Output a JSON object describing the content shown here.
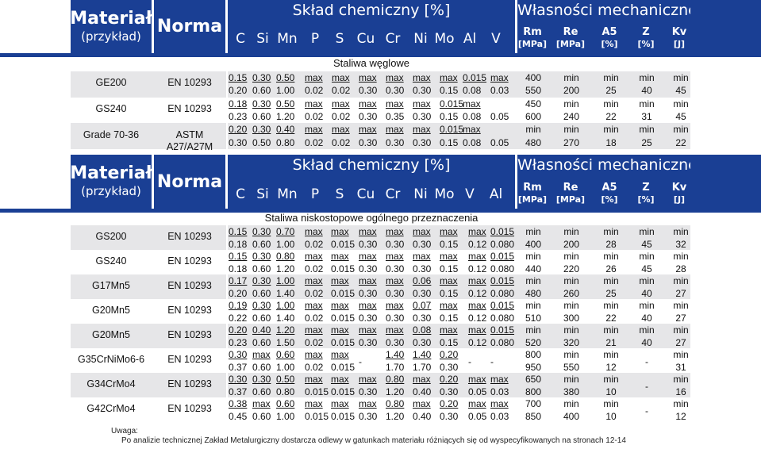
{
  "colors": {
    "header_bg": "#1a3f94",
    "row_bg": "#e6e6e8",
    "text": "#111111"
  },
  "header": {
    "material_title": "Materiał",
    "material_sub": "(przykład)",
    "norma": "Norma",
    "chem_title": "Skład chemiczny [%]",
    "mech_title": "Własności mechaniczne",
    "elements_top": [
      "C",
      "Si",
      "Mn",
      "P",
      "S",
      "Cu",
      "Cr",
      "Ni",
      "Mo",
      "Al",
      "V"
    ],
    "elements_bottom": [
      "C",
      "Si",
      "Mn",
      "P",
      "S",
      "Cu",
      "Cr",
      "Ni",
      "Mo",
      "V",
      "Al"
    ],
    "mech_cols": [
      {
        "sym": "Rm",
        "unit": "[MPa]"
      },
      {
        "sym": "Re",
        "unit": "[MPa]"
      },
      {
        "sym": "A5",
        "unit": "[%]"
      },
      {
        "sym": "Z",
        "unit": "[%]"
      },
      {
        "sym": "Kv",
        "unit": "[J]"
      }
    ]
  },
  "table1": {
    "section": "Staliwa węglowe",
    "materials": [
      {
        "name": "GE200",
        "norm": "EN 10293"
      },
      {
        "name": "GS240",
        "norm": "EN 10293"
      },
      {
        "name": "Grade 70-36",
        "norm": "ASTM A27/A27M"
      }
    ],
    "chem_rows": [
      [
        "0.15",
        "0.30",
        "0.50",
        "max",
        "max",
        "max",
        "max",
        "max",
        "max",
        "0.015",
        "max"
      ],
      [
        "0.20",
        "0.60",
        "1.00",
        "0.02",
        "0.02",
        "0.30",
        "0.30",
        "0.30",
        "0.15",
        "0.08",
        "0.03"
      ],
      [
        "0.18",
        "0.30",
        "0.50",
        "max",
        "max",
        "max",
        "max",
        "max",
        "0.015",
        "max",
        ""
      ],
      [
        "0.23",
        "0.60",
        "1.20",
        "0.02",
        "0.02",
        "0.30",
        "0.35",
        "0.30",
        "0.15",
        "0.08",
        "0.05"
      ],
      [
        "0.20",
        "0.30",
        "0.40",
        "max",
        "max",
        "max",
        "max",
        "max",
        "0.015",
        "max",
        ""
      ],
      [
        "0.30",
        "0.50",
        "0.80",
        "0.02",
        "0.02",
        "0.30",
        "0.30",
        "0.30",
        "0.15",
        "0.08",
        "0.05"
      ]
    ],
    "mech_rows": [
      [
        "400",
        "min",
        "min",
        "min",
        "min"
      ],
      [
        "550",
        "200",
        "25",
        "40",
        "45"
      ],
      [
        "450",
        "min",
        "min",
        "min",
        "min"
      ],
      [
        "600",
        "240",
        "22",
        "31",
        "45"
      ],
      [
        "min",
        "min",
        "min",
        "min",
        "min"
      ],
      [
        "480",
        "270",
        "18",
        "25",
        "22"
      ]
    ]
  },
  "table2": {
    "section": "Staliwa niskostopowe ogólnego przeznaczenia",
    "materials": [
      {
        "name": "GS200",
        "norm": "EN 10293"
      },
      {
        "name": "GS240",
        "norm": "EN 10293"
      },
      {
        "name": "G17Mn5",
        "norm": "EN 10293"
      },
      {
        "name": "G20Mn5",
        "norm": "EN 10293"
      },
      {
        "name": "G20Mn5",
        "norm": "EN 10293"
      },
      {
        "name": "G35CrNiMo6-6",
        "norm": "EN 10293"
      },
      {
        "name": "G34CrMo4",
        "norm": "EN 10293"
      },
      {
        "name": "G42CrMo4",
        "norm": "EN 10293"
      }
    ],
    "chem_rows": [
      [
        "0.15",
        "0.30",
        "0.70",
        "max",
        "max",
        "max",
        "max",
        "max",
        "max",
        "max",
        "0.015"
      ],
      [
        "0.18",
        "0.60",
        "1.00",
        "0.02",
        "0.015",
        "0.30",
        "0.30",
        "0.30",
        "0.15",
        "0.12",
        "0.080"
      ],
      [
        "0.15",
        "0.30",
        "0.80",
        "max",
        "max",
        "max",
        "max",
        "max",
        "max",
        "max",
        "0.015"
      ],
      [
        "0.18",
        "0.60",
        "1.20",
        "0.02",
        "0.015",
        "0.30",
        "0.30",
        "0.30",
        "0.15",
        "0.12",
        "0.080"
      ],
      [
        "0.17",
        "0.30",
        "1.00",
        "max",
        "max",
        "max",
        "max",
        "0.06",
        "max",
        "max",
        "0.015"
      ],
      [
        "0.20",
        "0.60",
        "1.40",
        "0.02",
        "0.015",
        "0.30",
        "0.30",
        "0.30",
        "0.15",
        "0.12",
        "0.080"
      ],
      [
        "0.19",
        "0.30",
        "1.00",
        "max",
        "max",
        "max",
        "max",
        "0.07",
        "max",
        "max",
        "0.015"
      ],
      [
        "0.22",
        "0.60",
        "1.40",
        "0.02",
        "0.015",
        "0.30",
        "0.30",
        "0.30",
        "0.15",
        "0.12",
        "0.080"
      ],
      [
        "0.20",
        "0.40",
        "1.20",
        "max",
        "max",
        "max",
        "max",
        "0.08",
        "max",
        "max",
        "0.015"
      ],
      [
        "0.23",
        "0.60",
        "1.50",
        "0.02",
        "0.015",
        "0.30",
        "0.30",
        "0.30",
        "0.15",
        "0.12",
        "0.080"
      ],
      [
        "0.30",
        "max",
        "0.60",
        "max",
        "max",
        "",
        "1.40",
        "1.40",
        "0.20",
        "",
        ""
      ],
      [
        "0.37",
        "0.60",
        "1.00",
        "0.02",
        "0.015",
        "-",
        "1.70",
        "1.70",
        "0.30",
        "-",
        "-"
      ],
      [
        "0.30",
        "0.30",
        "0.50",
        "max",
        "max",
        "max",
        "0.80",
        "max",
        "0.20",
        "max",
        "max"
      ],
      [
        "0.37",
        "0.60",
        "0.80",
        "0.015",
        "0.015",
        "0.30",
        "1.20",
        "0.40",
        "0.30",
        "0.05",
        "0.03"
      ],
      [
        "0.38",
        "max",
        "0.60",
        "max",
        "max",
        "max",
        "0.80",
        "max",
        "0.20",
        "max",
        "max"
      ],
      [
        "0.45",
        "0.60",
        "1.00",
        "0.015",
        "0.015",
        "0.30",
        "1.20",
        "0.40",
        "0.30",
        "0.05",
        "0.03"
      ]
    ],
    "mech_rows": [
      [
        "min",
        "min",
        "min",
        "min",
        "min"
      ],
      [
        "400",
        "200",
        "28",
        "45",
        "32"
      ],
      [
        "min",
        "min",
        "min",
        "min",
        "min"
      ],
      [
        "440",
        "220",
        "26",
        "45",
        "28"
      ],
      [
        "min",
        "min",
        "min",
        "min",
        "min"
      ],
      [
        "480",
        "260",
        "25",
        "40",
        "27"
      ],
      [
        "min",
        "min",
        "min",
        "min",
        "min"
      ],
      [
        "510",
        "300",
        "22",
        "40",
        "27"
      ],
      [
        "min",
        "min",
        "min",
        "min",
        "min"
      ],
      [
        "520",
        "320",
        "21",
        "40",
        "27"
      ],
      [
        "800",
        "min",
        "min",
        "",
        "min"
      ],
      [
        "950",
        "550",
        "12",
        "-",
        "31"
      ],
      [
        "650",
        "min",
        "min",
        "",
        "min"
      ],
      [
        "800",
        "380",
        "10",
        "-",
        "16"
      ],
      [
        "700",
        "min",
        "min",
        "",
        "min"
      ],
      [
        "850",
        "400",
        "10",
        "-",
        "12"
      ]
    ]
  },
  "note": {
    "label": "Uwaga:",
    "text": "Po analizie technicznej Zakład Metalurgiczny dostarcza odlewy w gatunkach materiału różniących się od wyspecyfikowanych na stronach 12-14"
  }
}
